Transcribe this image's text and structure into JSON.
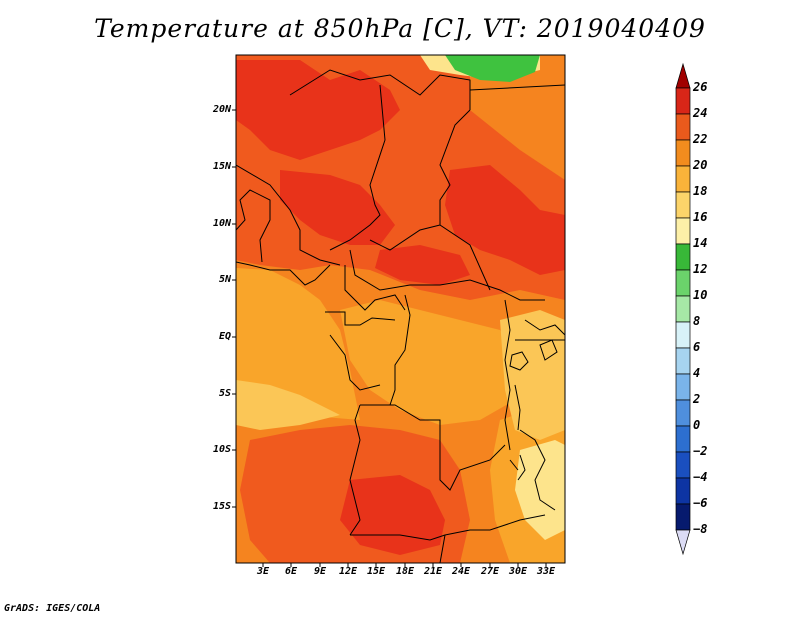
{
  "title": "Temperature at 850hPa [C], VT: 2019040409",
  "credit": "GrADS: IGES/COLA",
  "map": {
    "variable": "Temperature at 850hPa",
    "units": "C",
    "valid_time": "2019040409",
    "lat_ticks": [
      "20N",
      "15N",
      "10N",
      "5N",
      "EQ",
      "5S",
      "10S",
      "15S"
    ],
    "lon_ticks": [
      "3E",
      "6E",
      "9E",
      "12E",
      "15E",
      "18E",
      "21E",
      "24E",
      "27E",
      "30E",
      "33E"
    ],
    "colors": {
      "very_hot": "#e8331a",
      "hot": "#f05a1e",
      "warm": "#f5841f",
      "mild": "#f9a52a",
      "cool": "#fbc656",
      "pale": "#fde48c",
      "green": "#3fc23f"
    }
  },
  "colorbar": {
    "levels": [
      "26",
      "24",
      "22",
      "20",
      "18",
      "16",
      "14",
      "12",
      "10",
      "8",
      "6",
      "4",
      "2",
      "0",
      "−2",
      "−4",
      "−6",
      "−8"
    ],
    "colors": [
      "#a00000",
      "#d82618",
      "#ea5a1c",
      "#f28c1e",
      "#f9b33a",
      "#fcd46a",
      "#fdf0a8",
      "#38b838",
      "#6bd36b",
      "#a6e8a6",
      "#d8f2f8",
      "#a7d4f0",
      "#7ab4ea",
      "#4f8fdd",
      "#2d6fd0",
      "#1a4fbf",
      "#0d34a3",
      "#061a6e",
      "#dcdcf5"
    ]
  }
}
